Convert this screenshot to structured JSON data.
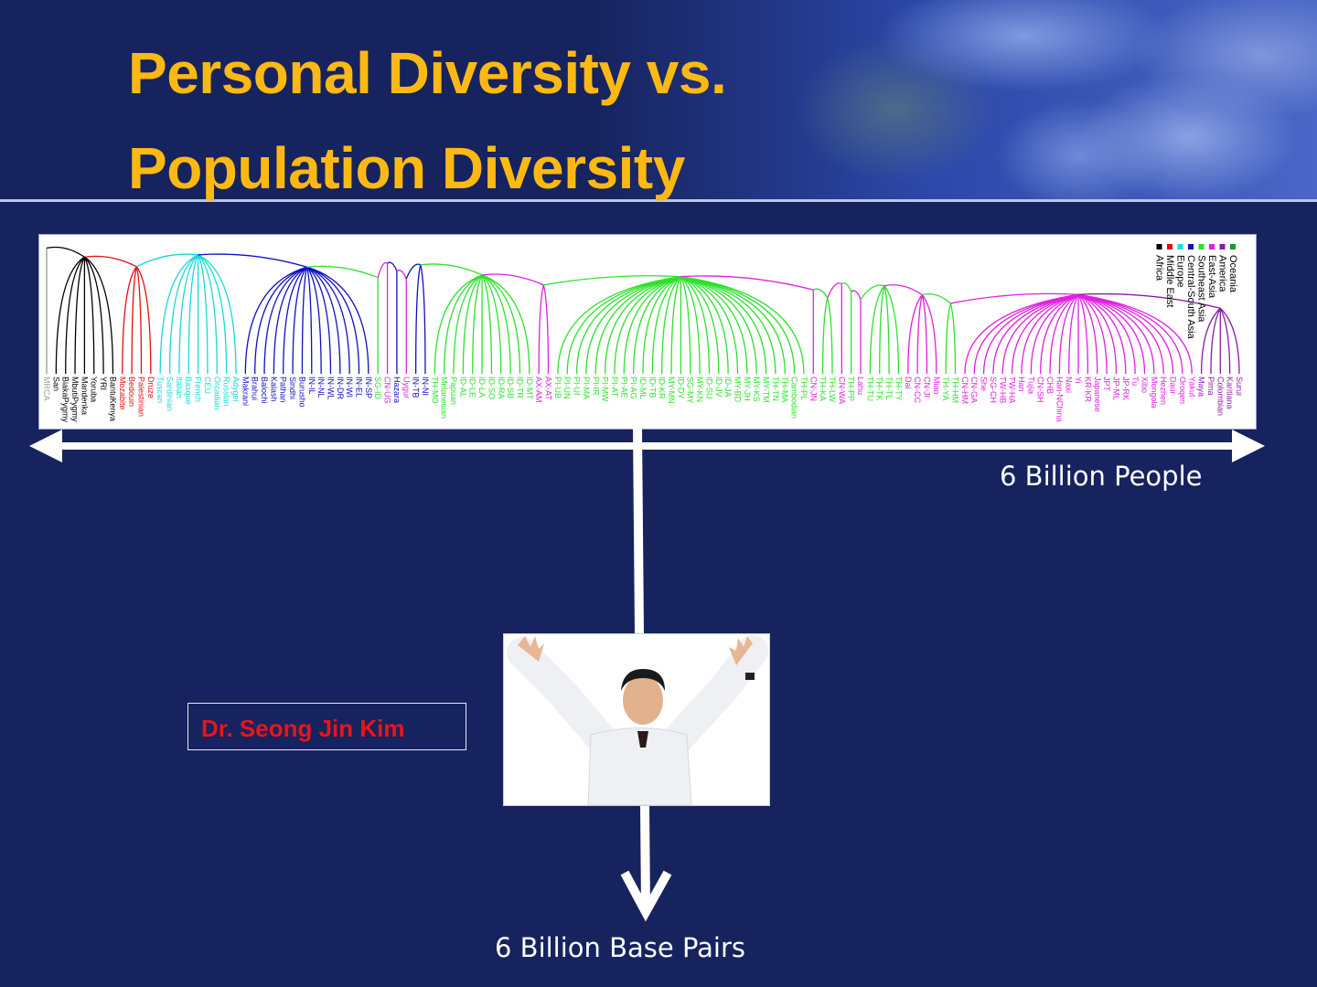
{
  "slide": {
    "title_line1": "Personal Diversity vs.",
    "title_line2": "Population Diversity",
    "horizontal_axis_label": "6 Billion People",
    "vertical_axis_label": "6 Billion Base Pairs",
    "name_box": "Dr. Seong Jin Kim",
    "colors": {
      "background": "#16235e",
      "title": "#fdb913",
      "name": "#e8141b"
    }
  },
  "tree": {
    "legend": [
      {
        "label": "Oceania",
        "color": "#1a9a2a"
      },
      {
        "label": "America",
        "color": "#8a1aa8"
      },
      {
        "label": "East-Asia",
        "color": "#e020e0"
      },
      {
        "label": "Southeast Asia",
        "color": "#2ee02e"
      },
      {
        "label": "Central-South Asia",
        "color": "#1010c0"
      },
      {
        "label": "Europe",
        "color": "#18e0e0"
      },
      {
        "label": "Middle East",
        "color": "#e01010"
      },
      {
        "label": "Africa",
        "color": "#000000"
      }
    ],
    "runs": [
      {
        "color": "#999999",
        "leaves": [
          "MRCA"
        ]
      },
      {
        "color": "#000000",
        "leaves": [
          "San",
          "BiakaPygmy",
          "MbutiPygmy",
          "Mandenka",
          "Yoruba",
          "YRI",
          "BantuKenya"
        ]
      },
      {
        "color": "#e01010",
        "leaves": [
          "Mozabite",
          "Bedouin",
          "Palestinian",
          "Druze"
        ]
      },
      {
        "color": "#18d8d8",
        "leaves": [
          "Tuscan",
          "Sardinian",
          "Italian",
          "Basque",
          "French",
          "CEU",
          "Orcadian",
          "Russian",
          "Adygei"
        ]
      },
      {
        "color": "#1010c0",
        "leaves": [
          "Makrani",
          "Brahui",
          "Balochi",
          "Kalash",
          "Pathan",
          "Sindhi",
          "Burusho",
          "IN-IL",
          "IN-NL",
          "IN-WL",
          "IN-DR",
          "IN-WI",
          "IN-EL",
          "IN-SP"
        ]
      },
      {
        "color": "#2ee02e",
        "leaves": [
          "SG-ID"
        ]
      },
      {
        "color": "#e020e0",
        "leaves": [
          "CN-UG"
        ]
      },
      {
        "color": "#1010c0",
        "leaves": [
          "Hazara"
        ]
      },
      {
        "color": "#e020e0",
        "leaves": [
          "Uygur"
        ]
      },
      {
        "color": "#1010c0",
        "leaves": [
          "IN-TB",
          "IN-NI"
        ]
      },
      {
        "color": "#2ee02e",
        "leaves": [
          "TH-MO",
          "Melanesian",
          "Papuan",
          "ID-AL",
          "ID-LE",
          "ID-LA",
          "ID-SO",
          "ID-RA",
          "ID-SB",
          "ID-TR",
          "ID-MT"
        ]
      },
      {
        "color": "#e020e0",
        "leaves": [
          "AX-AM",
          "AX-AT"
        ]
      },
      {
        "color": "#2ee02e",
        "leaves": [
          "PI-UB",
          "PI-UN",
          "PI-UI",
          "PI-MA",
          "PI-IR",
          "PI-MW",
          "PI-AT",
          "PI-AE",
          "PI-AG",
          "ID-ML",
          "ID-TB",
          "ID-KR",
          "MY-MN",
          "ID-DY",
          "SG-MY",
          "MY-KN",
          "ID-SU",
          "ID-JV",
          "ID-JA",
          "MY-BD",
          "MY-JH",
          "MY-KS",
          "MY-TM",
          "TH-TN",
          "TH-MA",
          "Cambodian",
          "TH-PL"
        ]
      },
      {
        "color": "#e020e0",
        "leaves": [
          "CN-JN"
        ]
      },
      {
        "color": "#2ee02e",
        "leaves": [
          "TH-KA",
          "TH-LW"
        ]
      },
      {
        "color": "#e020e0",
        "leaves": [
          "CN-WA"
        ]
      },
      {
        "color": "#2ee02e",
        "leaves": [
          "TH-PP"
        ]
      },
      {
        "color": "#e020e0",
        "leaves": [
          "Lahu"
        ]
      },
      {
        "color": "#2ee02e",
        "leaves": [
          "TH-TU",
          "TH-TK",
          "TH-TL",
          "TH-TY"
        ]
      },
      {
        "color": "#e020e0",
        "leaves": [
          "Dai",
          "CN-CC",
          "CN-JI",
          "Miao"
        ]
      },
      {
        "color": "#2ee02e",
        "leaves": [
          "TH-YA",
          "TH-HM"
        ]
      },
      {
        "color": "#e020e0",
        "leaves": [
          "CN-HM",
          "CN-GA",
          "She",
          "SG-CH",
          "TW-HB",
          "TW-HA",
          "Han",
          "Tujia",
          "CN-SH",
          "CHB",
          "Han-NChina",
          "Naxi",
          "Yi",
          "KR-KR",
          "Japanese",
          "JPT",
          "JP-ML",
          "JP-RK",
          "Tu",
          "Xibo",
          "Mongola",
          "Hezhen",
          "Daur",
          "Oroqen",
          "Yakut"
        ]
      },
      {
        "color": "#8a1aa8",
        "leaves": [
          "Maya",
          "Pima",
          "Colombian",
          "Karitiana",
          "Surui"
        ]
      }
    ]
  }
}
